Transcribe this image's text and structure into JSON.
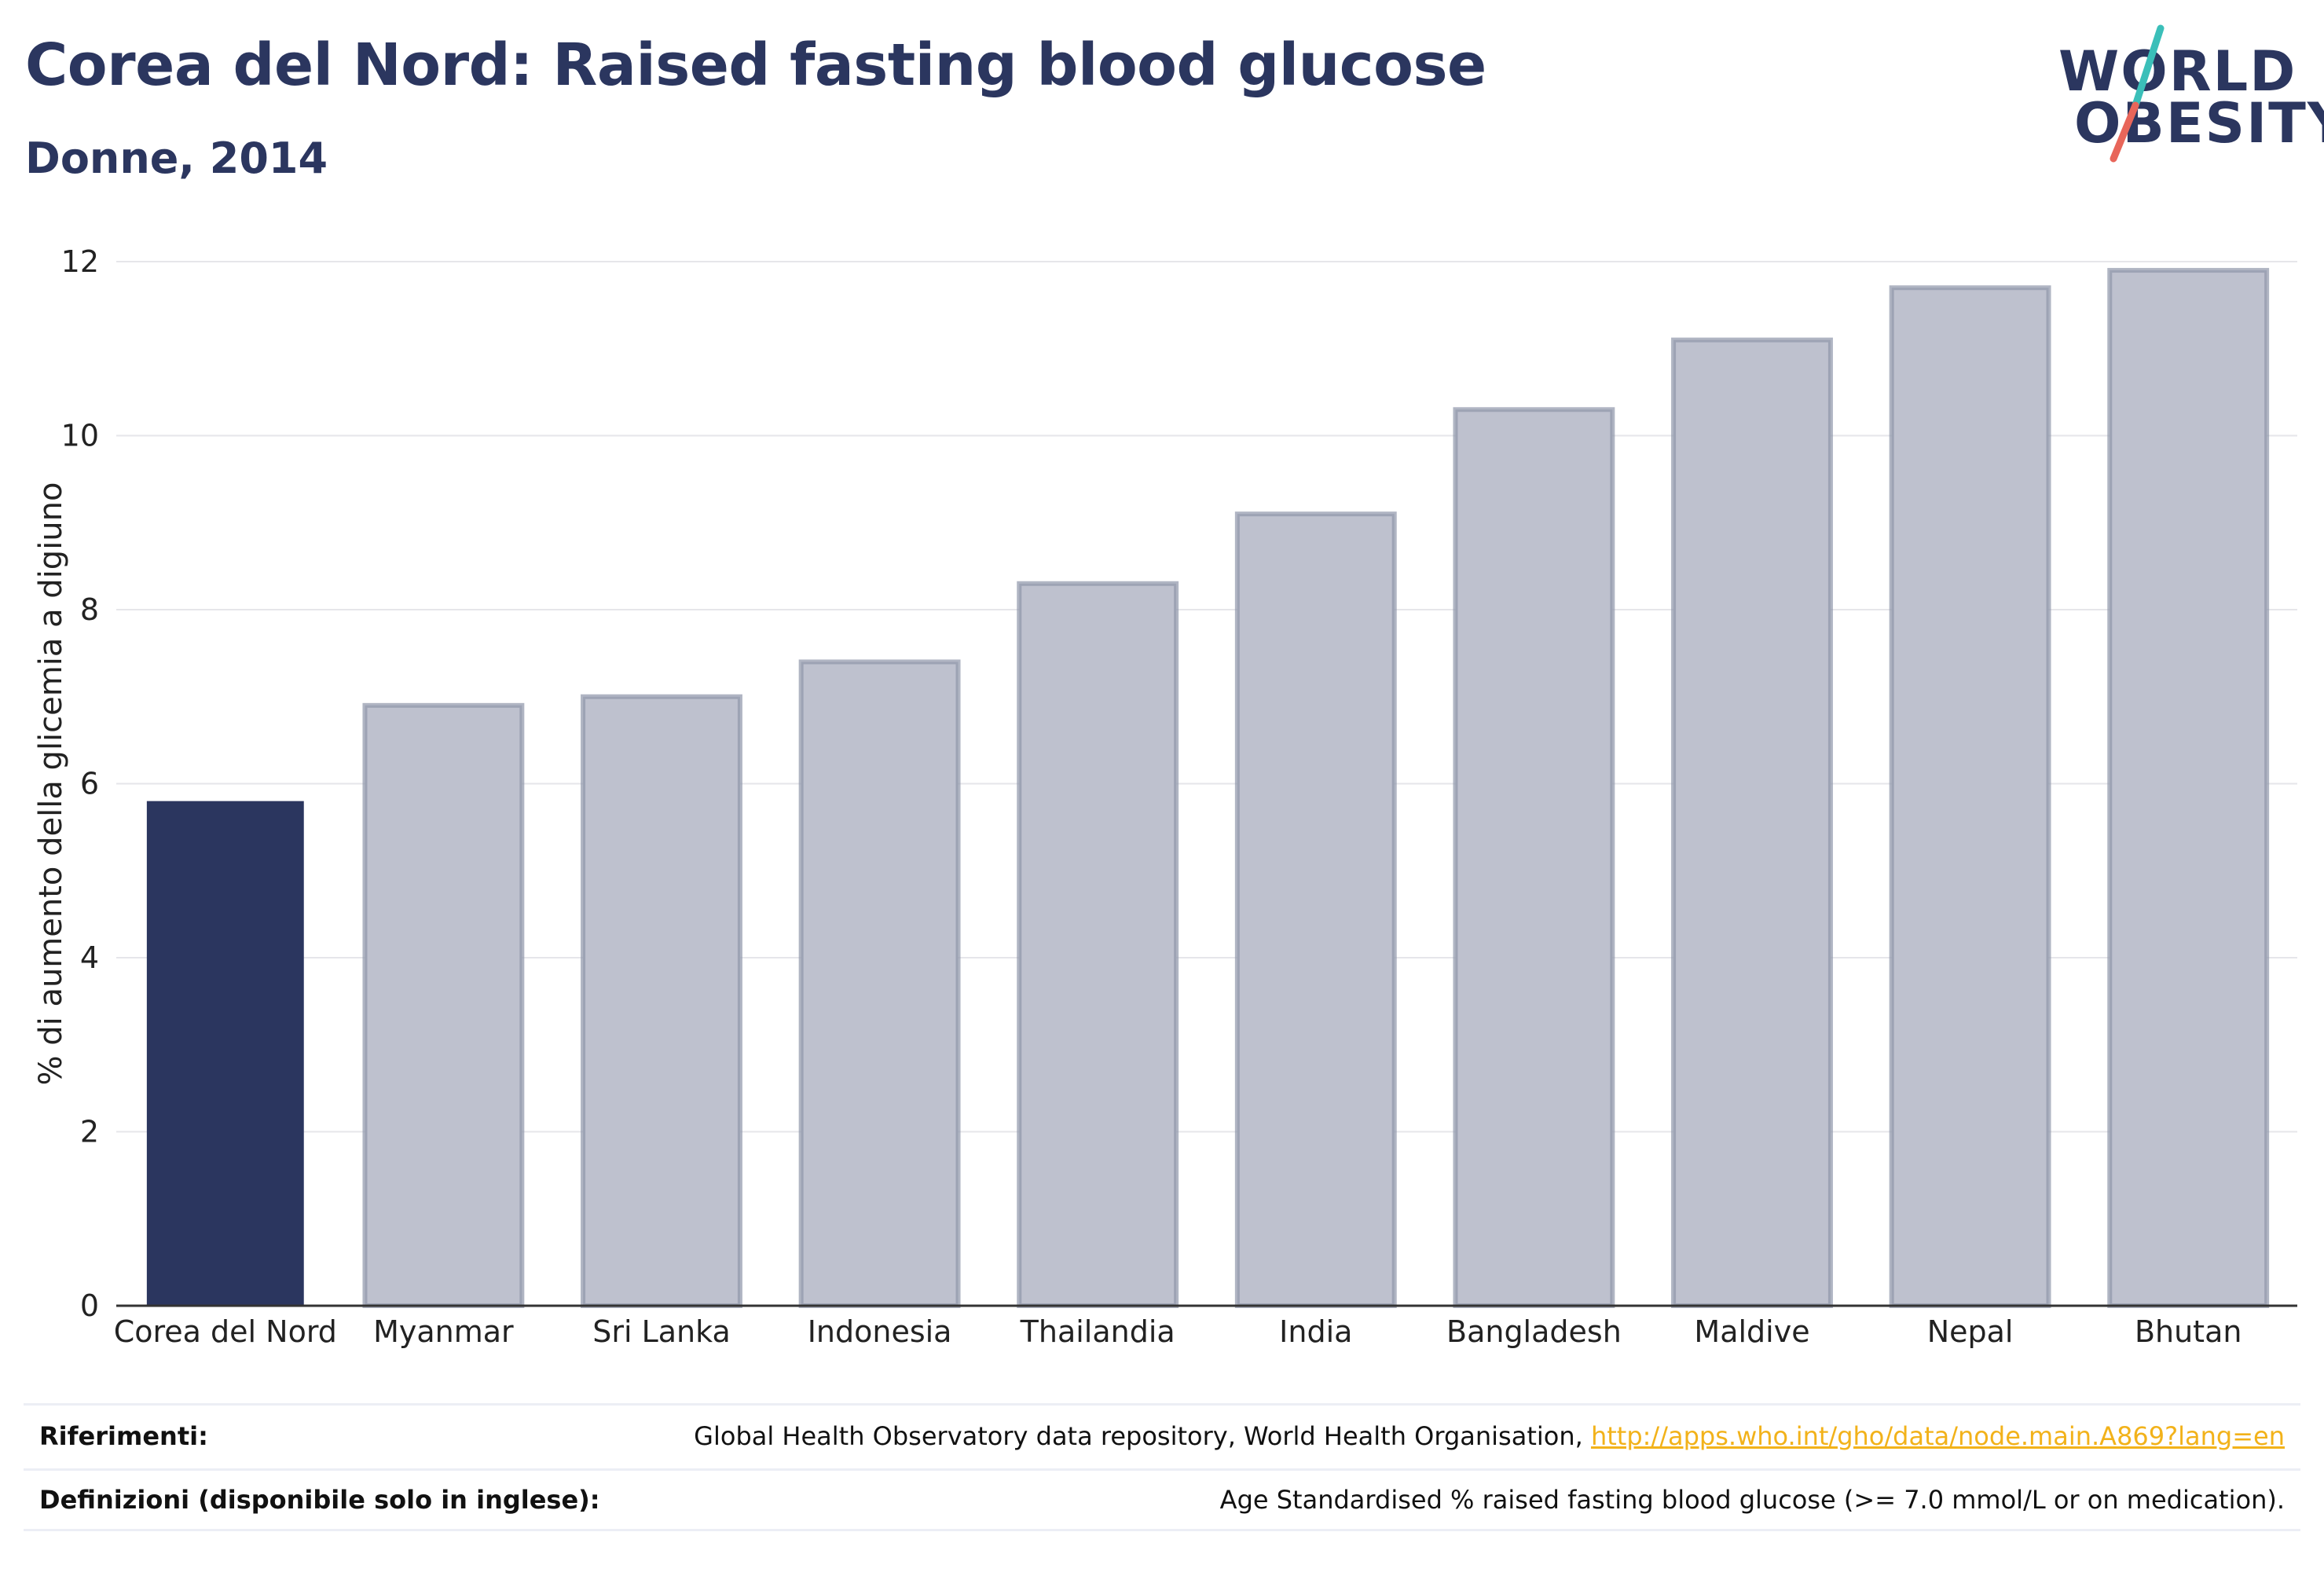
{
  "header": {
    "title": "Corea del Nord: Raised fasting blood glucose",
    "subtitle": "Donne, 2014"
  },
  "logo": {
    "line1": "WORLD",
    "line2": "OBESITY",
    "accent_colors": [
      "#3bbfb9",
      "#e8665a"
    ]
  },
  "colors": {
    "highlight": "#2b365f",
    "other_bars": "#bec1ce",
    "other_bar_border": "#8f95aa",
    "grid": "#e6e6ea",
    "link": "#f2b21a"
  },
  "chart_data": {
    "type": "bar",
    "title": "Corea del Nord: Raised fasting blood glucose",
    "subtitle": "Donne, 2014",
    "xlabel": "",
    "ylabel": "% di aumento della glicemia a digiuno",
    "categories": [
      "Corea del Nord",
      "Myanmar",
      "Sri Lanka",
      "Indonesia",
      "Thailandia",
      "India",
      "Bangladesh",
      "Maldive",
      "Nepal",
      "Bhutan"
    ],
    "values": [
      5.8,
      6.9,
      7.0,
      7.4,
      8.3,
      9.1,
      10.3,
      11.1,
      11.7,
      11.9
    ],
    "highlight_category": "Corea del Nord",
    "ylim": [
      0,
      12
    ],
    "yticks": [
      0,
      2,
      4,
      6,
      8,
      10,
      12
    ],
    "grid": true
  },
  "footer": {
    "references_label": "Riferimenti:",
    "references_text": "Global Health Observatory data repository, World Health Organisation,",
    "references_link": "http://apps.who.int/gho/data/node.main.A869?lang=en",
    "definitions_label": "Definizioni (disponibile solo in inglese):",
    "definitions_text": "Age Standardised % raised fasting blood glucose (>= 7.0 mmol/L or on medication)."
  }
}
